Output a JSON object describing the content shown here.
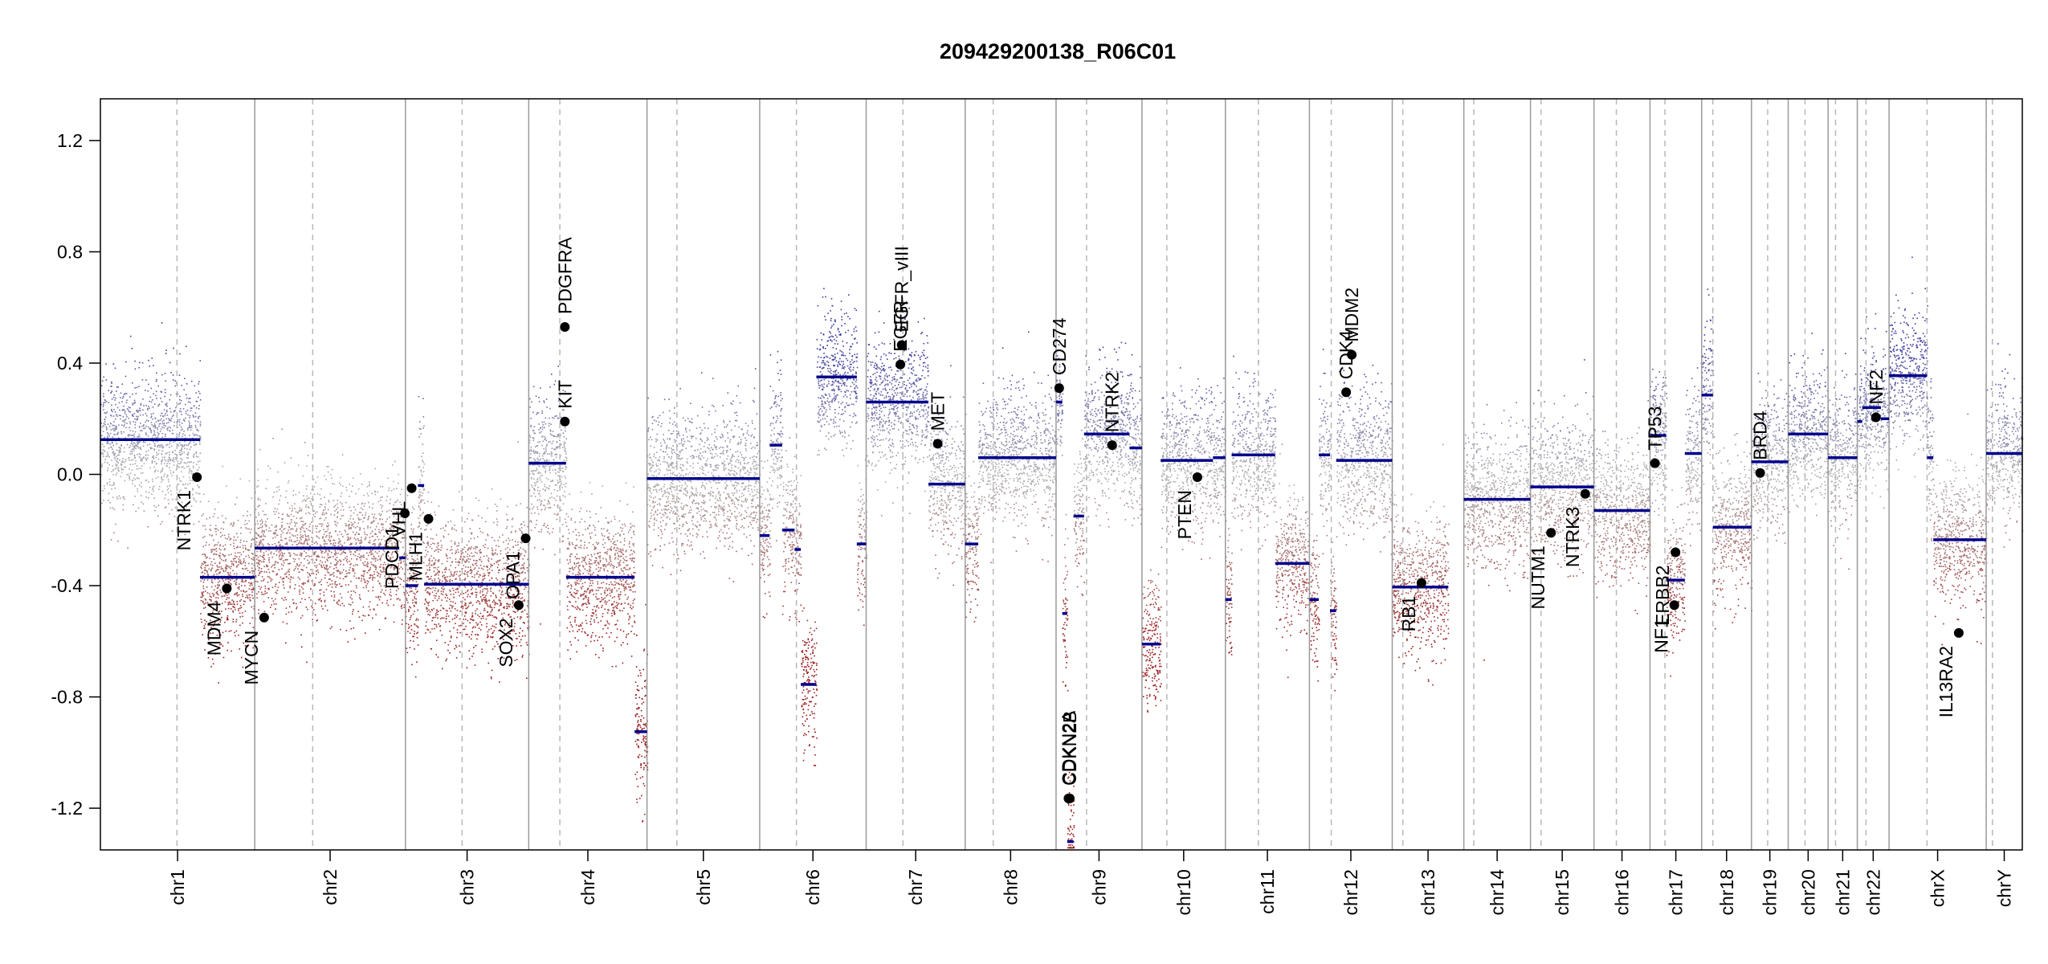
{
  "chart_data": {
    "type": "scatter",
    "title": "209429200138_R06C01",
    "xlabel": "",
    "ylabel": "",
    "ylim": [
      -1.35,
      1.35
    ],
    "y_ticks": [
      {
        "value": 1.2,
        "label": "1.2"
      },
      {
        "value": 0.8,
        "label": "0.8"
      },
      {
        "value": 0.4,
        "label": "0.4"
      },
      {
        "value": 0.0,
        "label": "0.0"
      },
      {
        "value": -0.4,
        "label": "-0.4"
      },
      {
        "value": -0.8,
        "label": "-0.8"
      },
      {
        "value": -1.2,
        "label": "-1.2"
      }
    ],
    "grid": false,
    "colors": {
      "gain": "#3a3aa0",
      "neutral": "#b0b0b0",
      "loss": "#9a1a1a",
      "segment": "#00008b",
      "gene_point": "#000000"
    },
    "chromosomes": [
      {
        "name": "chr1",
        "start": 0,
        "end": 248,
        "centromere": 123
      },
      {
        "name": "chr2",
        "start": 248,
        "end": 490,
        "centromere": 341
      },
      {
        "name": "chr3",
        "start": 490,
        "end": 688,
        "centromere": 581
      },
      {
        "name": "chr4",
        "start": 688,
        "end": 878,
        "centromere": 738
      },
      {
        "name": "chr5",
        "start": 878,
        "end": 1059,
        "centromere": 926
      },
      {
        "name": "chr6",
        "start": 1059,
        "end": 1230,
        "centromere": 1118
      },
      {
        "name": "chr7",
        "start": 1230,
        "end": 1389,
        "centromere": 1289
      },
      {
        "name": "chr8",
        "start": 1389,
        "end": 1535,
        "centromere": 1434
      },
      {
        "name": "chr9",
        "start": 1535,
        "end": 1673,
        "centromere": 1584
      },
      {
        "name": "chr10",
        "start": 1673,
        "end": 1807,
        "centromere": 1713
      },
      {
        "name": "chr11",
        "start": 1807,
        "end": 1942,
        "centromere": 1860
      },
      {
        "name": "chr12",
        "start": 1942,
        "end": 2075,
        "centromere": 1977
      },
      {
        "name": "chr13",
        "start": 2075,
        "end": 2190,
        "centromere": 2092
      },
      {
        "name": "chr14",
        "start": 2190,
        "end": 2297,
        "centromere": 2206
      },
      {
        "name": "chr15",
        "start": 2297,
        "end": 2399,
        "centromere": 2314
      },
      {
        "name": "chr16",
        "start": 2399,
        "end": 2489,
        "centromere": 2435
      },
      {
        "name": "chr17",
        "start": 2489,
        "end": 2572,
        "centromere": 2513
      },
      {
        "name": "chr18",
        "start": 2572,
        "end": 2652,
        "centromere": 2590
      },
      {
        "name": "chr19",
        "start": 2652,
        "end": 2711,
        "centromere": 2678
      },
      {
        "name": "chr20",
        "start": 2711,
        "end": 2775,
        "centromere": 2738
      },
      {
        "name": "chr21",
        "start": 2775,
        "end": 2822,
        "centromere": 2787
      },
      {
        "name": "chr22",
        "start": 2822,
        "end": 2873,
        "centromere": 2836
      },
      {
        "name": "chrX",
        "start": 2873,
        "end": 3029,
        "centromere": 2934
      },
      {
        "name": "chrY",
        "start": 3029,
        "end": 3087,
        "centromere": 3039
      }
    ],
    "segments": [
      {
        "start": 0,
        "end": 160,
        "value": 0.125
      },
      {
        "start": 160,
        "end": 248,
        "value": -0.37
      },
      {
        "start": 248,
        "end": 480,
        "value": -0.265
      },
      {
        "start": 480,
        "end": 490,
        "value": -0.3
      },
      {
        "start": 490,
        "end": 510,
        "value": -0.4
      },
      {
        "start": 510,
        "end": 520,
        "value": -0.04
      },
      {
        "start": 520,
        "end": 688,
        "value": -0.395
      },
      {
        "start": 688,
        "end": 748,
        "value": 0.04
      },
      {
        "start": 748,
        "end": 858,
        "value": -0.37
      },
      {
        "start": 858,
        "end": 878,
        "value": -0.925
      },
      {
        "start": 878,
        "end": 1059,
        "value": -0.015
      },
      {
        "start": 1059,
        "end": 1075,
        "value": -0.22
      },
      {
        "start": 1075,
        "end": 1095,
        "value": 0.105
      },
      {
        "start": 1095,
        "end": 1115,
        "value": -0.2
      },
      {
        "start": 1115,
        "end": 1125,
        "value": -0.27
      },
      {
        "start": 1125,
        "end": 1150,
        "value": -0.755
      },
      {
        "start": 1150,
        "end": 1215,
        "value": 0.35
      },
      {
        "start": 1215,
        "end": 1230,
        "value": -0.25
      },
      {
        "start": 1230,
        "end": 1330,
        "value": 0.26
      },
      {
        "start": 1330,
        "end": 1389,
        "value": -0.035
      },
      {
        "start": 1389,
        "end": 1410,
        "value": -0.25
      },
      {
        "start": 1410,
        "end": 1535,
        "value": 0.06
      },
      {
        "start": 1535,
        "end": 1545,
        "value": 0.26
      },
      {
        "start": 1545,
        "end": 1553,
        "value": -0.5
      },
      {
        "start": 1553,
        "end": 1563,
        "value": -1.32
      },
      {
        "start": 1563,
        "end": 1580,
        "value": -0.15
      },
      {
        "start": 1580,
        "end": 1653,
        "value": 0.145
      },
      {
        "start": 1653,
        "end": 1673,
        "value": 0.095
      },
      {
        "start": 1673,
        "end": 1703,
        "value": -0.61
      },
      {
        "start": 1703,
        "end": 1787,
        "value": 0.05
      },
      {
        "start": 1787,
        "end": 1807,
        "value": 0.06
      },
      {
        "start": 1807,
        "end": 1817,
        "value": -0.45
      },
      {
        "start": 1817,
        "end": 1887,
        "value": 0.07
      },
      {
        "start": 1887,
        "end": 1942,
        "value": -0.32
      },
      {
        "start": 1942,
        "end": 1957,
        "value": -0.45
      },
      {
        "start": 1957,
        "end": 1975,
        "value": 0.07
      },
      {
        "start": 1975,
        "end": 1985,
        "value": -0.49
      },
      {
        "start": 1985,
        "end": 2075,
        "value": 0.05
      },
      {
        "start": 2075,
        "end": 2165,
        "value": -0.405
      },
      {
        "start": 2190,
        "end": 2297,
        "value": -0.09
      },
      {
        "start": 2297,
        "end": 2399,
        "value": -0.045
      },
      {
        "start": 2399,
        "end": 2489,
        "value": -0.13
      },
      {
        "start": 2489,
        "end": 2515,
        "value": 0.14
      },
      {
        "start": 2515,
        "end": 2545,
        "value": -0.38
      },
      {
        "start": 2545,
        "end": 2572,
        "value": 0.075
      },
      {
        "start": 2572,
        "end": 2590,
        "value": 0.285
      },
      {
        "start": 2590,
        "end": 2652,
        "value": -0.19
      },
      {
        "start": 2652,
        "end": 2711,
        "value": 0.045
      },
      {
        "start": 2711,
        "end": 2775,
        "value": 0.145
      },
      {
        "start": 2775,
        "end": 2822,
        "value": 0.06
      },
      {
        "start": 2822,
        "end": 2830,
        "value": 0.19
      },
      {
        "start": 2830,
        "end": 2860,
        "value": 0.24
      },
      {
        "start": 2860,
        "end": 2873,
        "value": 0.2
      },
      {
        "start": 2873,
        "end": 2934,
        "value": 0.355
      },
      {
        "start": 2934,
        "end": 2944,
        "value": 0.06
      },
      {
        "start": 2944,
        "end": 3029,
        "value": -0.235
      },
      {
        "start": 3029,
        "end": 3087,
        "value": 0.075
      }
    ],
    "genes": [
      {
        "name": "NTRK1",
        "pos": 155,
        "value": -0.01,
        "label_side": "below"
      },
      {
        "name": "MDM4",
        "pos": 203,
        "value": -0.41,
        "label_side": "below"
      },
      {
        "name": "MYCN",
        "pos": 263,
        "value": -0.515,
        "label_side": "below"
      },
      {
        "name": "PDCD1",
        "pos": 489,
        "value": -0.14,
        "label_side": "below"
      },
      {
        "name": "VHL",
        "pos": 500,
        "value": -0.05,
        "label_side": "below"
      },
      {
        "name": "MLH1",
        "pos": 527,
        "value": -0.16,
        "label_side": "below"
      },
      {
        "name": "SOX2",
        "pos": 672,
        "value": -0.47,
        "label_side": "below"
      },
      {
        "name": "OPA1",
        "pos": 683,
        "value": -0.23,
        "label_side": "below"
      },
      {
        "name": "PDGFRA",
        "pos": 746,
        "value": 0.53,
        "label_side": "above"
      },
      {
        "name": "KIT",
        "pos": 746,
        "value": 0.19,
        "label_side": "above"
      },
      {
        "name": "EGFR",
        "pos": 1285,
        "value": 0.395,
        "label_side": "above"
      },
      {
        "name": "EGFR_vIII",
        "pos": 1287,
        "value": 0.465,
        "label_side": "above"
      },
      {
        "name": "MET",
        "pos": 1345,
        "value": 0.11,
        "label_side": "above"
      },
      {
        "name": "CD274",
        "pos": 1540,
        "value": 0.31,
        "label_side": "above"
      },
      {
        "name": "CDKN2A",
        "pos": 1555,
        "value": -1.165,
        "label_side": "above"
      },
      {
        "name": "CDKN2B",
        "pos": 1557,
        "value": -1.165,
        "label_side": "above"
      },
      {
        "name": "NTRK2",
        "pos": 1625,
        "value": 0.105,
        "label_side": "above"
      },
      {
        "name": "PTEN",
        "pos": 1762,
        "value": -0.01,
        "label_side": "below"
      },
      {
        "name": "CDK4",
        "pos": 2001,
        "value": 0.295,
        "label_side": "above"
      },
      {
        "name": "MDM2",
        "pos": 2010,
        "value": 0.43,
        "label_side": "above"
      },
      {
        "name": "RB1",
        "pos": 2122,
        "value": -0.39,
        "label_side": "below"
      },
      {
        "name": "NUTM1",
        "pos": 2330,
        "value": -0.21,
        "label_side": "below"
      },
      {
        "name": "NTRK3",
        "pos": 2385,
        "value": -0.07,
        "label_side": "below"
      },
      {
        "name": "TP53",
        "pos": 2497,
        "value": 0.04,
        "label_side": "above"
      },
      {
        "name": "NF1",
        "pos": 2528,
        "value": -0.47,
        "label_side": "below"
      },
      {
        "name": "ERBB2",
        "pos": 2530,
        "value": -0.28,
        "label_side": "below"
      },
      {
        "name": "BRD4",
        "pos": 2666,
        "value": 0.005,
        "label_side": "above"
      },
      {
        "name": "NF2",
        "pos": 2852,
        "value": 0.205,
        "label_side": "above"
      },
      {
        "name": "IL13RA2",
        "pos": 2985,
        "value": -0.57,
        "label_side": "below"
      }
    ]
  }
}
